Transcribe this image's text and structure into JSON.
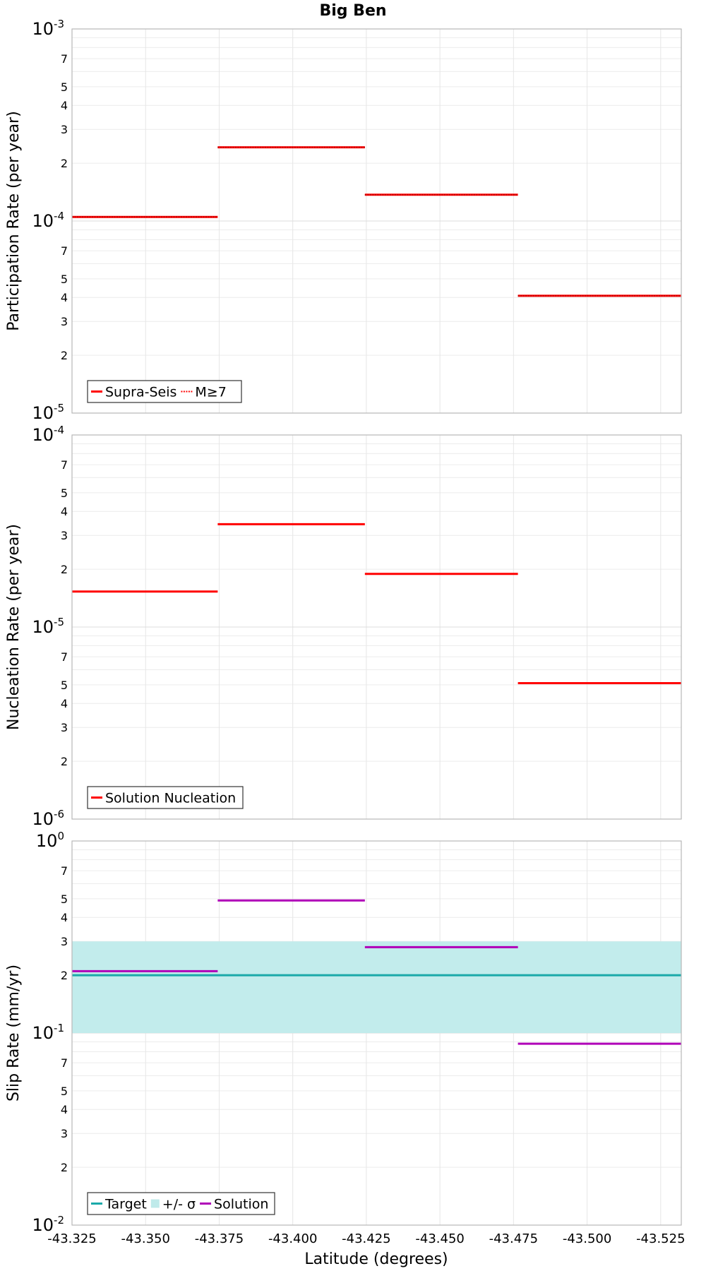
{
  "figure_title": "Big Ben",
  "xlabel": "Latitude (degrees)",
  "chart_data": [
    {
      "type": "line",
      "scale": "log",
      "ylabel": "Participation Rate (per year)",
      "xlim": [
        -43.325,
        -43.532
      ],
      "ylim": [
        1e-05,
        0.001
      ],
      "x_ticks": [
        -43.325,
        -43.35,
        -43.375,
        -43.4,
        -43.425,
        -43.45,
        -43.475,
        -43.5,
        -43.525
      ],
      "x_tick_labels": [
        "-43.325",
        "-43.350",
        "-43.375",
        "-43.400",
        "-43.425",
        "-43.450",
        "-43.475",
        "-43.500",
        "-43.525"
      ],
      "y_major_labels": [
        {
          "base": "10",
          "exp": "-5"
        },
        {
          "base": "10",
          "exp": "-4"
        },
        {
          "base": "10",
          "exp": "-3"
        }
      ],
      "y_minor_labels": [
        "2",
        "3",
        "4",
        "5",
        "7"
      ],
      "legend": [
        {
          "label": "Supra-Seis",
          "color": "#ff0000",
          "style": "solid"
        },
        {
          "label": "M≥7",
          "color": "#ff0000",
          "style": "dotted"
        }
      ],
      "series": [
        {
          "name": "Supra-Seis",
          "color": "#ff0000",
          "style": "solid",
          "segments": [
            [
              -43.325,
              -43.3745,
              0.000105
            ],
            [
              -43.3745,
              -43.4245,
              0.000242
            ],
            [
              -43.4245,
              -43.4765,
              0.000137
            ],
            [
              -43.4765,
              -43.532,
              4.08e-05
            ]
          ]
        },
        {
          "name": "M≥7",
          "color": "#ff0000",
          "style": "dotted",
          "segments": [
            [
              -43.325,
              -43.3745,
              0.000105
            ],
            [
              -43.3745,
              -43.4245,
              0.000242
            ],
            [
              -43.4245,
              -43.4765,
              0.000137
            ],
            [
              -43.4765,
              -43.532,
              4.08e-05
            ]
          ]
        }
      ]
    },
    {
      "type": "line",
      "scale": "log",
      "ylabel": "Nucleation Rate (per year)",
      "xlim": [
        -43.325,
        -43.532
      ],
      "ylim": [
        1e-06,
        0.0001
      ],
      "x_ticks": [
        -43.325,
        -43.35,
        -43.375,
        -43.4,
        -43.425,
        -43.45,
        -43.475,
        -43.5,
        -43.525
      ],
      "x_tick_labels": [
        "-43.325",
        "-43.350",
        "-43.375",
        "-43.400",
        "-43.425",
        "-43.450",
        "-43.475",
        "-43.500",
        "-43.525"
      ],
      "y_major_labels": [
        {
          "base": "10",
          "exp": "-6"
        },
        {
          "base": "10",
          "exp": "-5"
        },
        {
          "base": "10",
          "exp": "-4"
        }
      ],
      "y_minor_labels": [
        "2",
        "3",
        "4",
        "5",
        "7"
      ],
      "legend": [
        {
          "label": "Solution Nucleation",
          "color": "#ff0000",
          "style": "solid"
        }
      ],
      "series": [
        {
          "name": "Solution Nucleation",
          "color": "#ff0000",
          "style": "solid",
          "segments": [
            [
              -43.325,
              -43.3745,
              1.53e-05
            ],
            [
              -43.3745,
              -43.4245,
              3.43e-05
            ],
            [
              -43.4245,
              -43.4765,
              1.89e-05
            ],
            [
              -43.4765,
              -43.532,
              5.1e-06
            ]
          ]
        }
      ]
    },
    {
      "type": "line",
      "scale": "log",
      "ylabel": "Slip Rate (mm/yr)",
      "xlim": [
        -43.325,
        -43.532
      ],
      "ylim": [
        0.01,
        1
      ],
      "x_ticks": [
        -43.325,
        -43.35,
        -43.375,
        -43.4,
        -43.425,
        -43.45,
        -43.475,
        -43.5,
        -43.525
      ],
      "x_tick_labels": [
        "-43.325",
        "-43.350",
        "-43.375",
        "-43.400",
        "-43.425",
        "-43.450",
        "-43.475",
        "-43.500",
        "-43.525"
      ],
      "y_major_labels": [
        {
          "base": "10",
          "exp": "-2"
        },
        {
          "base": "10",
          "exp": "-1"
        },
        {
          "base": "10",
          "exp": "0"
        }
      ],
      "y_minor_labels": [
        "2",
        "3",
        "4",
        "5",
        "7"
      ],
      "legend": [
        {
          "label": "Target",
          "color": "#1aa9a9",
          "style": "solid"
        },
        {
          "label": "+/- σ",
          "color": "#bfeaea",
          "style": "band"
        },
        {
          "label": "Solution",
          "color": "#b000b8",
          "style": "solid"
        }
      ],
      "band": {
        "name": "+/- σ",
        "color": "#c2ecec",
        "low": 0.1,
        "high": 0.3
      },
      "series": [
        {
          "name": "Target",
          "color": "#1aa9a9",
          "style": "solid",
          "segments": [
            [
              -43.325,
              -43.532,
              0.2
            ]
          ]
        },
        {
          "name": "Solution",
          "color": "#b000b8",
          "style": "solid",
          "segments": [
            [
              -43.325,
              -43.3745,
              0.21
            ],
            [
              -43.3745,
              -43.4245,
              0.49
            ],
            [
              -43.4245,
              -43.4765,
              0.28
            ],
            [
              -43.4765,
              -43.532,
              0.088
            ]
          ]
        }
      ]
    }
  ]
}
